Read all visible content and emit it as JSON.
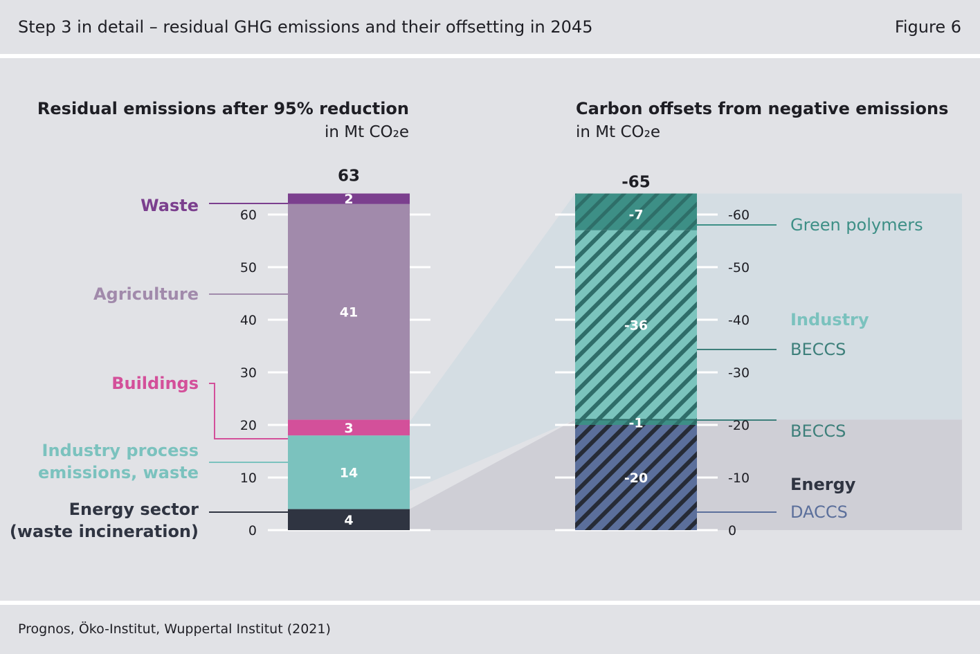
{
  "header": {
    "title": "Step 3 in detail – residual GHG emissions and their offsetting in 2045",
    "figure_label": "Figure 6"
  },
  "footer": {
    "source": "Prognos, Öko-Institut, Wuppertal Institut (2021)"
  },
  "colors": {
    "waste": "#7b3f8e",
    "agriculture": "#a18aab",
    "buildings": "#d3509a",
    "industry_process": "#7bc2be",
    "energy_sector": "#2f3441",
    "green_polymers": "#3d8f86",
    "industry_beccs": "#7bc4bd",
    "energy_beccs": "#3d8f86",
    "daccs": "#5b6f9b",
    "band_industry": "#d4dde3",
    "band_energy": "#cfcfd6"
  },
  "chart_data": [
    {
      "type": "bar",
      "stacked": true,
      "title": "Residual emissions after 95% reduction",
      "unit": "in Mt CO₂e",
      "total_label": "63",
      "ylim": [
        0,
        63
      ],
      "yticks": [
        0,
        10,
        20,
        30,
        40,
        50,
        60
      ],
      "series": [
        {
          "name": "Energy sector (waste incineration)",
          "value": 4,
          "label": "4",
          "color_key": "energy_sector"
        },
        {
          "name": "Industry process emissions, waste",
          "value": 14,
          "label": "14",
          "color_key": "industry_process"
        },
        {
          "name": "Buildings",
          "value": 3,
          "label": "3",
          "color_key": "buildings"
        },
        {
          "name": "Agriculture",
          "value": 41,
          "label": "41",
          "color_key": "agriculture"
        },
        {
          "name": "Waste",
          "value": 2,
          "label": "2",
          "color_key": "waste"
        }
      ],
      "legend_labels": [
        {
          "key": "waste",
          "lines": [
            "Waste"
          ]
        },
        {
          "key": "agriculture",
          "lines": [
            "Agriculture"
          ]
        },
        {
          "key": "buildings",
          "lines": [
            "Buildings"
          ]
        },
        {
          "key": "industry_process",
          "lines": [
            "Industry process",
            "emissions, waste"
          ]
        },
        {
          "key": "energy_sector",
          "lines": [
            "Energy sector",
            "(waste incineration)"
          ]
        }
      ]
    },
    {
      "type": "bar",
      "stacked": true,
      "title": "Carbon offsets from negative emissions",
      "unit": "in Mt CO₂e",
      "total_label": "-65",
      "ylim": [
        0,
        -65
      ],
      "yticks": [
        0,
        -10,
        -20,
        -30,
        -40,
        -50,
        -60
      ],
      "series": [
        {
          "name": "Energy DACCS",
          "value": -20,
          "label": "-20",
          "color_key": "daccs",
          "hatched": true
        },
        {
          "name": "Energy BECCS",
          "value": -1,
          "label": "-1",
          "color_key": "energy_beccs",
          "hatched": true
        },
        {
          "name": "Industry BECCS",
          "value": -36,
          "label": "-36",
          "color_key": "industry_beccs",
          "hatched": true
        },
        {
          "name": "Green polymers",
          "value": -7,
          "label": "-7",
          "color_key": "green_polymers",
          "hatched": true
        }
      ],
      "group_labels": [
        {
          "name": "Industry",
          "color_key": "industry_beccs"
        },
        {
          "name": "Energy",
          "color_key": "energy_sector"
        }
      ],
      "legend_labels": [
        {
          "key": "green_polymers",
          "text": "Green polymers"
        },
        {
          "key": "industry_beccs",
          "text": "BECCS"
        },
        {
          "key": "energy_beccs",
          "text": "BECCS"
        },
        {
          "key": "daccs",
          "text": "DACCS"
        }
      ]
    }
  ]
}
